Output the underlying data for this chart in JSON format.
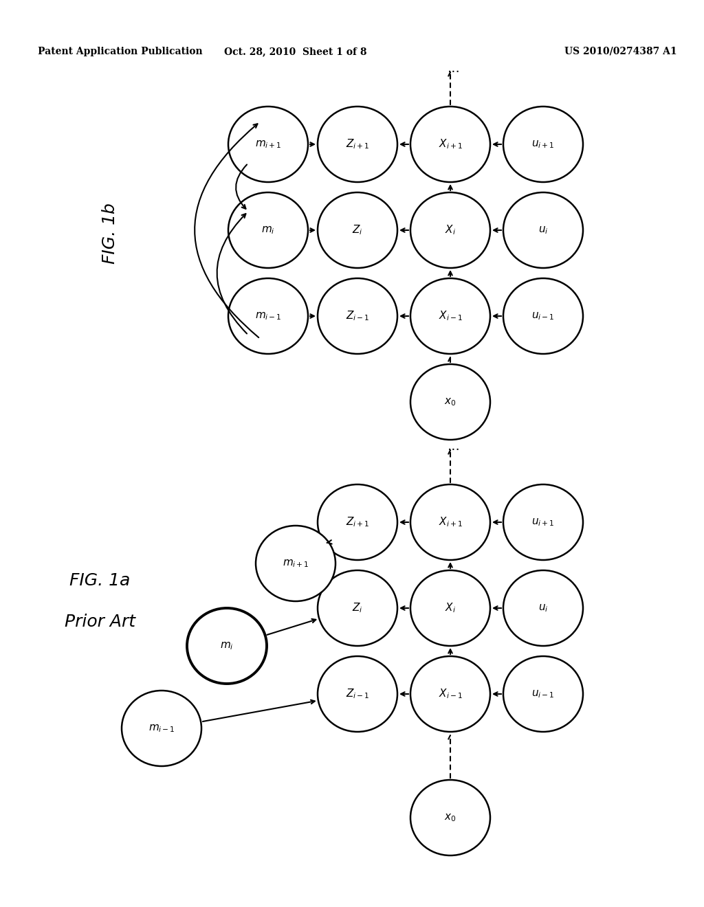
{
  "header_left": "Patent Application Publication",
  "header_center": "Oct. 28, 2010  Sheet 1 of 8",
  "header_right": "US 2010/0274387 A1",
  "bg": "#ffffff"
}
